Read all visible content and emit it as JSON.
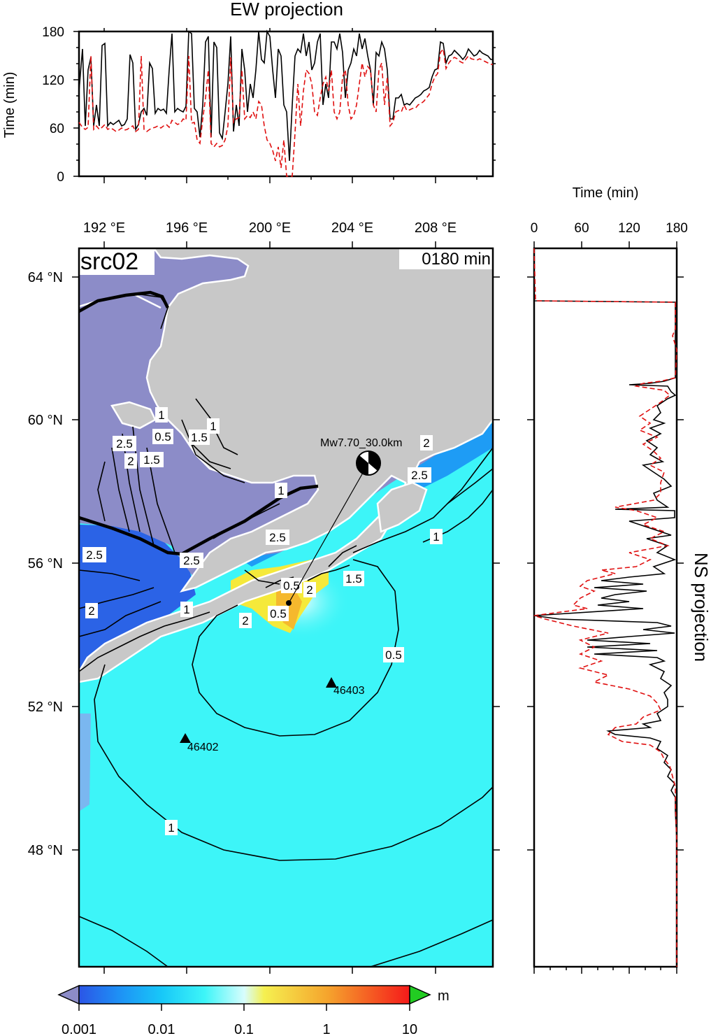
{
  "ew_panel": {
    "title": "EW projection",
    "ylabel": "Time (min)",
    "yticks": [
      "0",
      "60",
      "120",
      "180"
    ]
  },
  "ns_panel": {
    "title": "NS projection",
    "xlabel": "Time (min)",
    "xticks": [
      "0",
      "60",
      "120",
      "180"
    ]
  },
  "map": {
    "label": "src02",
    "time_label": "0180 min",
    "lon_ticks": [
      "192 °E",
      "196 °E",
      "200 °E",
      "204 °E",
      "208 °E"
    ],
    "lat_ticks": [
      "64 °N",
      "60 °N",
      "56 °N",
      "52 °N",
      "48 °N"
    ],
    "event_label": "Mw7.70_30.0km",
    "stations": [
      {
        "id": "46403"
      },
      {
        "id": "46402"
      }
    ],
    "contour_labels": [
      "2.5",
      "2",
      "1.5",
      "1",
      "0.5",
      "2.5",
      "2",
      "1",
      "2.5",
      "1",
      "1.5",
      "0.5",
      "1",
      "2",
      "2.5",
      "1",
      "2",
      "1.5",
      "0.5",
      "2.5",
      "1",
      "2",
      "0.5"
    ],
    "colors": {
      "land": "#c8c8c8",
      "shelf": "#8c8cc8",
      "deep_blue": "#2b63e6",
      "mid_blue": "#1e9cf5",
      "cyan": "#3df5f8",
      "light_cyan": "#b4fbfb",
      "yellow": "#f5e93a",
      "orange": "#f5b82d",
      "sim_line": "#000000",
      "obs_line": "#e01010"
    }
  },
  "colorbar": {
    "unit": "m",
    "ticks": [
      "0.001",
      "0.01",
      "0.1",
      "1",
      "10"
    ]
  }
}
